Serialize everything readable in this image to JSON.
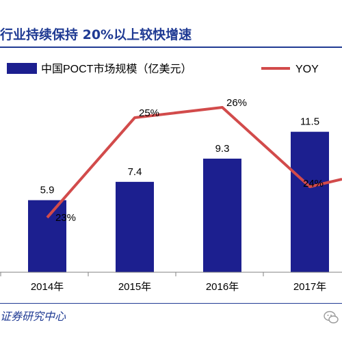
{
  "header": {
    "title": "行业持续保持 20%以上较快增速"
  },
  "footer": {
    "source": "证券研究中心"
  },
  "colors": {
    "bar": "#1c1f8f",
    "line": "#d24b4b",
    "title": "#1f3a93",
    "axis": "#808080"
  },
  "chart_data": {
    "type": "bar",
    "categories": [
      "2014年",
      "2015年",
      "2016年",
      "2017年"
    ],
    "series": [
      {
        "name": "中国POCT市场规模（亿美元）",
        "type": "bar",
        "values": [
          5.9,
          7.4,
          9.3,
          11.5
        ],
        "labels": [
          "5.9",
          "7.4",
          "9.3",
          "11.5"
        ]
      },
      {
        "name": "YOY",
        "type": "line",
        "values": [
          23,
          25,
          26,
          24
        ],
        "labels": [
          "23%",
          "25%",
          "26%",
          "24%"
        ]
      }
    ],
    "ylim": [
      0,
      14
    ],
    "y2lim": [
      0,
      30
    ],
    "legend_position": "top",
    "grid": false
  }
}
